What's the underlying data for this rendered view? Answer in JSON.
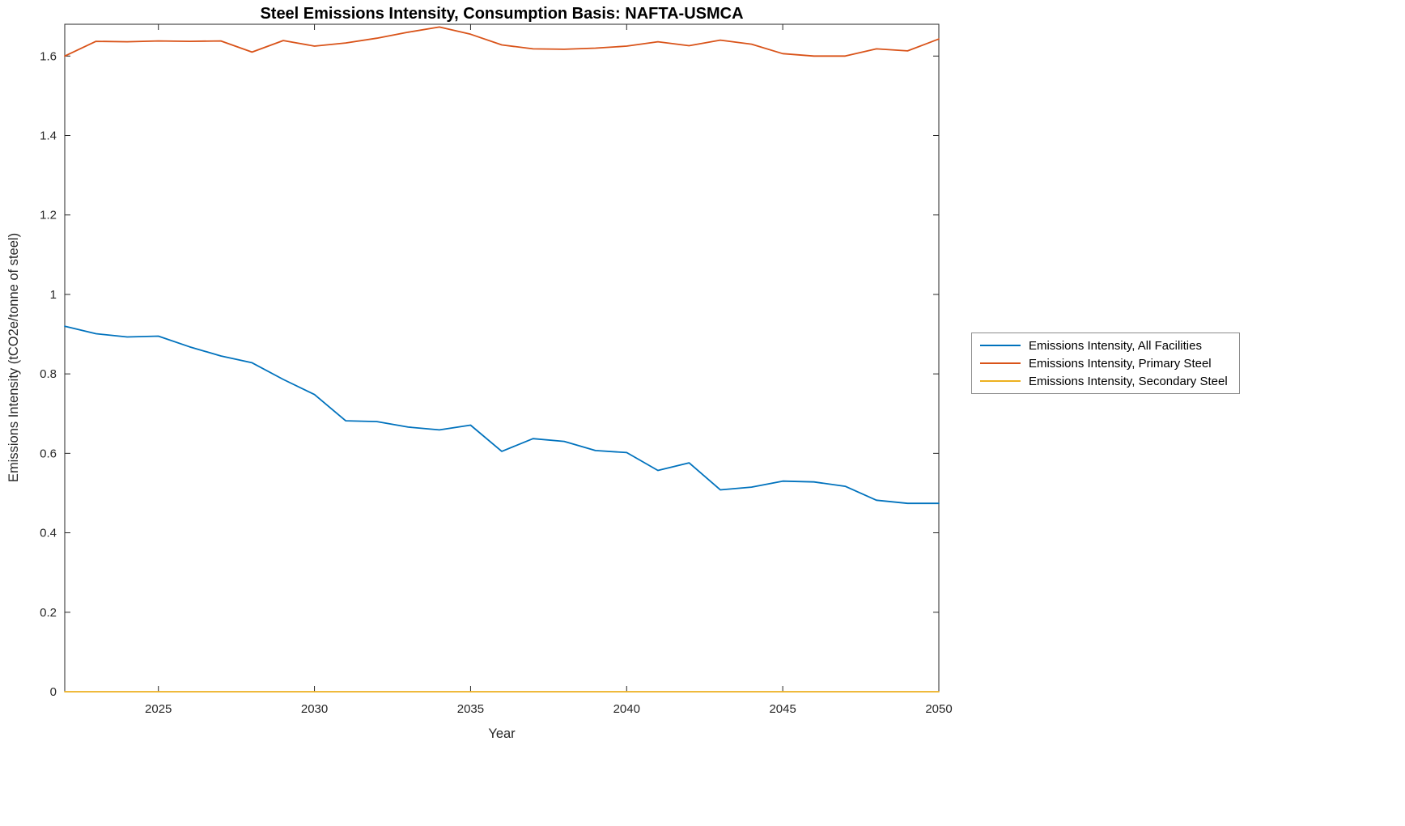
{
  "chart_data": {
    "type": "line",
    "title": "Steel Emissions Intensity, Consumption Basis: NAFTA-USMCA",
    "xlabel": "Year",
    "ylabel": "Emissions Intensity (tCO2e/tonne of steel)",
    "grid": false,
    "legend_position": "right-outside",
    "axis_color": "#262626",
    "background": "#ffffff",
    "xlim": [
      2022,
      2050
    ],
    "ylim": [
      0,
      1.68
    ],
    "xticks": [
      2025,
      2030,
      2035,
      2040,
      2045,
      2050
    ],
    "yticks": [
      0,
      0.2,
      0.4,
      0.6,
      0.8,
      1,
      1.2,
      1.4,
      1.6
    ],
    "ytick_labels": [
      "0",
      "0.2",
      "0.4",
      "0.6",
      "0.8",
      "1",
      "1.2",
      "1.4",
      "1.6"
    ],
    "x": [
      2022,
      2023,
      2024,
      2025,
      2026,
      2027,
      2028,
      2029,
      2030,
      2031,
      2032,
      2033,
      2034,
      2035,
      2036,
      2037,
      2038,
      2039,
      2040,
      2041,
      2042,
      2043,
      2044,
      2045,
      2046,
      2047,
      2048,
      2049,
      2050
    ],
    "series": [
      {
        "name": "Emissions Intensity, All Facilities",
        "color": "#0072BD",
        "values": [
          0.92,
          0.901,
          0.893,
          0.895,
          0.868,
          0.845,
          0.828,
          0.786,
          0.748,
          0.682,
          0.68,
          0.666,
          0.659,
          0.671,
          0.605,
          0.637,
          0.63,
          0.607,
          0.602,
          0.557,
          0.576,
          0.508,
          0.515,
          0.53,
          0.528,
          0.517,
          0.482,
          0.474,
          0.474
        ]
      },
      {
        "name": "Emissions Intensity, Primary Steel",
        "color": "#D95319",
        "values": [
          1.6,
          1.637,
          1.636,
          1.638,
          1.637,
          1.638,
          1.61,
          1.639,
          1.625,
          1.633,
          1.645,
          1.66,
          1.673,
          1.655,
          1.628,
          1.618,
          1.617,
          1.62,
          1.625,
          1.636,
          1.626,
          1.64,
          1.63,
          1.606,
          1.6,
          1.6,
          1.618,
          1.613,
          1.643
        ]
      },
      {
        "name": "Emissions Intensity, Secondary Steel",
        "color": "#EDB120",
        "values": [
          0,
          0,
          0,
          0,
          0,
          0,
          0,
          0,
          0,
          0,
          0,
          0,
          0,
          0,
          0,
          0,
          0,
          0,
          0,
          0,
          0,
          0,
          0,
          0,
          0,
          0,
          0,
          0,
          0
        ]
      }
    ]
  }
}
